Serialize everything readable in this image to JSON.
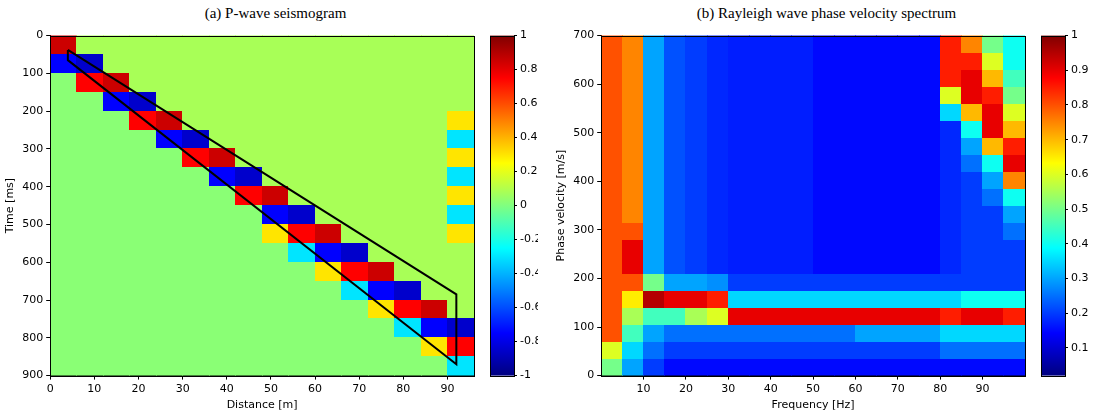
{
  "chart_data": [
    {
      "type": "heatmap",
      "title": "(a) P-wave seismogram",
      "x_label": "Distance [m]",
      "y_label": "Time [ms]",
      "xlim": [
        0,
        96
      ],
      "xticks": [
        0,
        10,
        20,
        30,
        40,
        50,
        60,
        70,
        80,
        90
      ],
      "ylim": [
        900,
        0
      ],
      "yticks": [
        0,
        100,
        200,
        300,
        400,
        500,
        600,
        700,
        800,
        900
      ],
      "grid": false,
      "zlim": [
        -1,
        1
      ],
      "zticks": [
        -1,
        -0.8,
        -0.6,
        -0.4,
        -0.2,
        0,
        0.2,
        0.4,
        0.6,
        0.8,
        1
      ],
      "x": [
        3,
        9,
        15,
        21,
        27,
        33,
        39,
        45,
        51,
        57,
        63,
        69,
        75,
        81,
        87,
        93
      ],
      "y": [
        25,
        75,
        125,
        175,
        225,
        275,
        325,
        375,
        425,
        475,
        525,
        575,
        625,
        675,
        725,
        775,
        825,
        875
      ],
      "z": [
        [
          0.85,
          0.08,
          0.08,
          0.08,
          0.08,
          0.08,
          0.08,
          0.08,
          0.08,
          0.08,
          0.08,
          0.08,
          0.08,
          0.08,
          0.08,
          0.08
        ],
        [
          -0.75,
          -0.85,
          0.08,
          0.08,
          0.08,
          0.08,
          0.08,
          0.08,
          0.08,
          0.08,
          0.08,
          0.08,
          0.08,
          0.08,
          0.08,
          0.08
        ],
        [
          0.02,
          0.75,
          0.85,
          0.08,
          0.08,
          0.08,
          0.08,
          0.08,
          0.08,
          0.08,
          0.08,
          0.08,
          0.08,
          0.08,
          0.08,
          0.08
        ],
        [
          0.02,
          0.02,
          -0.75,
          -0.85,
          0.08,
          0.08,
          0.08,
          0.08,
          0.08,
          0.08,
          0.08,
          0.08,
          0.08,
          0.08,
          0.08,
          0.08
        ],
        [
          0.02,
          0.02,
          0.02,
          0.75,
          0.85,
          0.08,
          0.08,
          0.08,
          0.08,
          0.08,
          0.08,
          0.08,
          0.08,
          0.08,
          0.08,
          0.3
        ],
        [
          0.02,
          0.02,
          0.02,
          0.02,
          -0.75,
          -0.85,
          0.08,
          0.08,
          0.08,
          0.08,
          0.08,
          0.08,
          0.08,
          0.08,
          0.08,
          -0.3
        ],
        [
          0.02,
          0.02,
          0.02,
          0.02,
          0.02,
          0.75,
          0.85,
          0.08,
          0.08,
          0.08,
          0.08,
          0.08,
          0.08,
          0.08,
          0.08,
          0.3
        ],
        [
          0.02,
          0.02,
          0.02,
          0.02,
          0.02,
          0.02,
          -0.75,
          -0.85,
          0.08,
          0.08,
          0.08,
          0.08,
          0.08,
          0.08,
          0.08,
          -0.3
        ],
        [
          0.02,
          0.02,
          0.02,
          0.02,
          0.02,
          0.02,
          0.02,
          0.75,
          0.85,
          0.08,
          0.08,
          0.08,
          0.08,
          0.08,
          0.08,
          0.3
        ],
        [
          0.02,
          0.02,
          0.02,
          0.02,
          0.02,
          0.02,
          0.02,
          0.02,
          -0.75,
          -0.85,
          0.08,
          0.08,
          0.08,
          0.08,
          0.08,
          -0.3
        ],
        [
          0.02,
          0.02,
          0.02,
          0.02,
          0.02,
          0.02,
          0.02,
          0.02,
          0.3,
          0.75,
          0.85,
          0.08,
          0.08,
          0.08,
          0.08,
          0.3
        ],
        [
          0.02,
          0.02,
          0.02,
          0.02,
          0.02,
          0.02,
          0.02,
          0.02,
          0.02,
          -0.3,
          -0.75,
          -0.85,
          0.08,
          0.08,
          0.08,
          0.08
        ],
        [
          0.02,
          0.02,
          0.02,
          0.02,
          0.02,
          0.02,
          0.02,
          0.02,
          0.02,
          0.02,
          0.3,
          0.75,
          0.85,
          0.08,
          0.08,
          0.08
        ],
        [
          0.02,
          0.02,
          0.02,
          0.02,
          0.02,
          0.02,
          0.02,
          0.02,
          0.02,
          0.02,
          0.02,
          -0.3,
          -0.75,
          -0.85,
          0.08,
          0.08
        ],
        [
          0.02,
          0.02,
          0.02,
          0.02,
          0.02,
          0.02,
          0.02,
          0.02,
          0.02,
          0.02,
          0.02,
          0.02,
          0.3,
          0.75,
          0.85,
          0.08
        ],
        [
          0.02,
          0.02,
          0.02,
          0.02,
          0.02,
          0.02,
          0.02,
          0.02,
          0.02,
          0.02,
          0.02,
          0.02,
          0.02,
          -0.3,
          -0.75,
          -0.85
        ],
        [
          0.02,
          0.02,
          0.02,
          0.02,
          0.02,
          0.02,
          0.02,
          0.02,
          0.02,
          0.02,
          0.02,
          0.02,
          0.02,
          0.02,
          0.3,
          0.75
        ],
        [
          0.02,
          0.02,
          0.02,
          0.02,
          0.02,
          0.02,
          0.02,
          0.02,
          0.02,
          0.02,
          0.02,
          0.02,
          0.02,
          0.02,
          0.02,
          -0.3
        ]
      ],
      "outline": {
        "x": [
          4,
          4,
          92,
          92,
          4
        ],
        "y": [
          38,
          65,
          870,
          685,
          38
        ],
        "color": "#000000"
      }
    },
    {
      "type": "heatmap",
      "title": "(b) Rayleigh wave phase velocity spectrum",
      "x_label": "Frequency [Hz]",
      "y_label": "Phase velocity [m/s]",
      "xlim": [
        0,
        100
      ],
      "xticks": [
        10,
        20,
        30,
        40,
        50,
        60,
        70,
        80,
        90
      ],
      "ylim": [
        0,
        700
      ],
      "yticks": [
        0,
        100,
        200,
        300,
        400,
        500,
        600,
        700
      ],
      "grid": false,
      "zlim": [
        0.02,
        1
      ],
      "zticks": [
        0.1,
        0.2,
        0.3,
        0.4,
        0.5,
        0.6,
        0.7,
        0.8,
        0.9,
        1
      ],
      "x": [
        2.5,
        7.5,
        12.5,
        17.5,
        22.5,
        27.5,
        32.5,
        37.5,
        42.5,
        47.5,
        52.5,
        57.5,
        62.5,
        67.5,
        72.5,
        77.5,
        82.5,
        87.5,
        92.5,
        97.5
      ],
      "y": [
        17.5,
        52.5,
        87.5,
        122.5,
        157.5,
        192.5,
        227.5,
        262.5,
        297.5,
        332.5,
        367.5,
        402.5,
        437.5,
        472.5,
        507.5,
        542.5,
        577.5,
        612.5,
        647.5,
        682.5
      ],
      "z": [
        [
          0.5,
          0.3,
          0.2,
          0.15,
          0.15,
          0.15,
          0.15,
          0.15,
          0.15,
          0.15,
          0.15,
          0.15,
          0.15,
          0.15,
          0.15,
          0.15,
          0.15,
          0.15,
          0.15,
          0.15
        ],
        [
          0.6,
          0.35,
          0.25,
          0.2,
          0.2,
          0.2,
          0.2,
          0.2,
          0.2,
          0.2,
          0.2,
          0.2,
          0.2,
          0.2,
          0.2,
          0.2,
          0.25,
          0.25,
          0.25,
          0.25
        ],
        [
          0.8,
          0.45,
          0.3,
          0.25,
          0.25,
          0.25,
          0.25,
          0.25,
          0.25,
          0.25,
          0.25,
          0.25,
          0.3,
          0.3,
          0.3,
          0.3,
          0.35,
          0.35,
          0.35,
          0.35
        ],
        [
          0.8,
          0.55,
          0.45,
          0.45,
          0.55,
          0.6,
          0.9,
          0.9,
          0.9,
          0.9,
          0.9,
          0.9,
          0.9,
          0.9,
          0.9,
          0.9,
          0.85,
          0.9,
          0.9,
          0.85
        ],
        [
          0.8,
          0.65,
          0.95,
          0.9,
          0.9,
          0.85,
          0.35,
          0.35,
          0.35,
          0.35,
          0.35,
          0.35,
          0.35,
          0.35,
          0.35,
          0.35,
          0.35,
          0.4,
          0.4,
          0.4
        ],
        [
          0.8,
          0.8,
          0.5,
          0.3,
          0.3,
          0.28,
          0.2,
          0.2,
          0.2,
          0.2,
          0.2,
          0.2,
          0.2,
          0.2,
          0.2,
          0.2,
          0.2,
          0.2,
          0.2,
          0.2
        ],
        [
          0.8,
          0.9,
          0.3,
          0.22,
          0.2,
          0.18,
          0.17,
          0.17,
          0.17,
          0.17,
          0.15,
          0.15,
          0.15,
          0.15,
          0.15,
          0.15,
          0.18,
          0.2,
          0.2,
          0.2
        ],
        [
          0.8,
          0.9,
          0.3,
          0.22,
          0.2,
          0.18,
          0.17,
          0.17,
          0.17,
          0.17,
          0.15,
          0.15,
          0.15,
          0.15,
          0.15,
          0.15,
          0.18,
          0.2,
          0.2,
          0.2
        ],
        [
          0.8,
          0.8,
          0.3,
          0.22,
          0.2,
          0.18,
          0.17,
          0.17,
          0.17,
          0.17,
          0.15,
          0.15,
          0.15,
          0.15,
          0.15,
          0.15,
          0.18,
          0.2,
          0.2,
          0.25
        ],
        [
          0.8,
          0.75,
          0.3,
          0.22,
          0.2,
          0.18,
          0.17,
          0.17,
          0.17,
          0.17,
          0.15,
          0.15,
          0.15,
          0.15,
          0.15,
          0.15,
          0.18,
          0.2,
          0.2,
          0.3
        ],
        [
          0.8,
          0.75,
          0.3,
          0.22,
          0.2,
          0.18,
          0.17,
          0.17,
          0.17,
          0.17,
          0.15,
          0.15,
          0.15,
          0.15,
          0.15,
          0.15,
          0.18,
          0.2,
          0.25,
          0.4
        ],
        [
          0.8,
          0.75,
          0.3,
          0.22,
          0.2,
          0.18,
          0.17,
          0.17,
          0.17,
          0.17,
          0.15,
          0.15,
          0.15,
          0.15,
          0.15,
          0.15,
          0.18,
          0.2,
          0.3,
          0.75
        ],
        [
          0.8,
          0.75,
          0.3,
          0.22,
          0.2,
          0.18,
          0.17,
          0.17,
          0.17,
          0.17,
          0.15,
          0.15,
          0.15,
          0.15,
          0.15,
          0.15,
          0.18,
          0.25,
          0.4,
          0.9
        ],
        [
          0.8,
          0.75,
          0.3,
          0.22,
          0.2,
          0.18,
          0.17,
          0.17,
          0.17,
          0.17,
          0.15,
          0.15,
          0.15,
          0.15,
          0.15,
          0.15,
          0.18,
          0.3,
          0.7,
          0.85
        ],
        [
          0.8,
          0.75,
          0.3,
          0.22,
          0.2,
          0.18,
          0.17,
          0.17,
          0.17,
          0.17,
          0.15,
          0.15,
          0.15,
          0.15,
          0.15,
          0.15,
          0.18,
          0.4,
          0.9,
          0.7
        ],
        [
          0.8,
          0.75,
          0.3,
          0.22,
          0.2,
          0.18,
          0.17,
          0.17,
          0.17,
          0.17,
          0.15,
          0.15,
          0.15,
          0.15,
          0.15,
          0.15,
          0.35,
          0.7,
          0.9,
          0.6
        ],
        [
          0.8,
          0.75,
          0.3,
          0.22,
          0.2,
          0.18,
          0.17,
          0.17,
          0.17,
          0.17,
          0.15,
          0.15,
          0.15,
          0.15,
          0.15,
          0.15,
          0.6,
          0.9,
          0.85,
          0.5
        ],
        [
          0.8,
          0.75,
          0.3,
          0.22,
          0.2,
          0.18,
          0.17,
          0.17,
          0.17,
          0.17,
          0.15,
          0.15,
          0.15,
          0.15,
          0.15,
          0.15,
          0.85,
          0.9,
          0.7,
          0.45
        ],
        [
          0.8,
          0.75,
          0.3,
          0.22,
          0.2,
          0.18,
          0.17,
          0.17,
          0.17,
          0.17,
          0.15,
          0.15,
          0.15,
          0.15,
          0.15,
          0.15,
          0.85,
          0.85,
          0.6,
          0.4
        ],
        [
          0.8,
          0.75,
          0.3,
          0.22,
          0.2,
          0.18,
          0.17,
          0.17,
          0.17,
          0.17,
          0.15,
          0.15,
          0.15,
          0.15,
          0.15,
          0.15,
          0.85,
          0.75,
          0.5,
          0.4
        ]
      ]
    }
  ]
}
